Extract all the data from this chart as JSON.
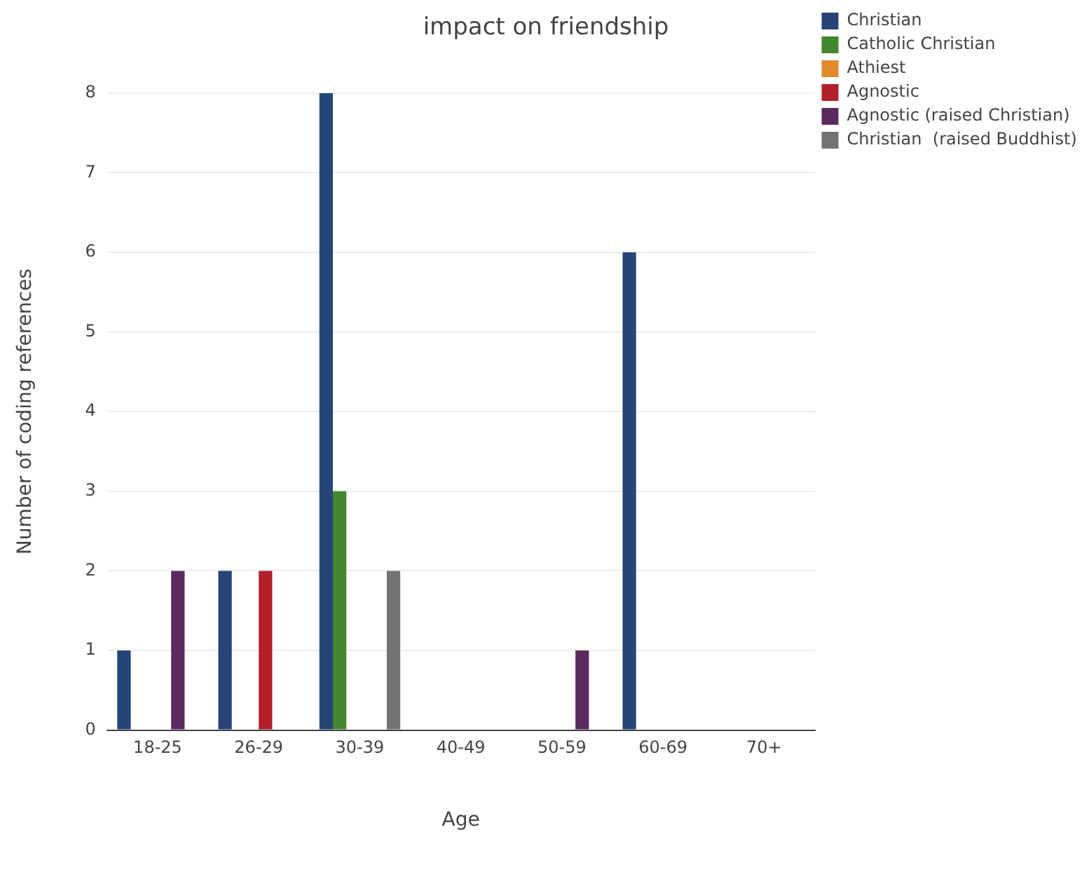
{
  "chart_data": {
    "type": "bar",
    "title": "impact on friendship",
    "xlabel": "Age",
    "ylabel": "Number of coding references",
    "categories": [
      "18-25",
      "26-29",
      "30-39",
      "40-49",
      "50-59",
      "60-69",
      "70+"
    ],
    "series": [
      {
        "name": "Christian",
        "color": "#264478",
        "values": [
          1,
          2,
          8,
          0,
          0,
          6,
          0
        ]
      },
      {
        "name": "Catholic Christian",
        "color": "#43882f",
        "values": [
          0,
          0,
          3,
          0,
          0,
          0,
          0
        ]
      },
      {
        "name": "Athiest",
        "color": "#e08a2c",
        "values": [
          0,
          0,
          0,
          0,
          0,
          0,
          0
        ]
      },
      {
        "name": "Agnostic",
        "color": "#b11f2a",
        "values": [
          0,
          2,
          0,
          0,
          0,
          0,
          0
        ]
      },
      {
        "name": "Agnostic (raised Christian)",
        "color": "#5a2a5f",
        "values": [
          2,
          0,
          0,
          0,
          1,
          0,
          0
        ]
      },
      {
        "name": "Christian  (raised Buddhist)",
        "color": "#737373",
        "values": [
          0,
          0,
          2,
          0,
          0,
          0,
          0
        ]
      }
    ],
    "ylim": [
      0,
      8
    ],
    "yticks": [
      0,
      1,
      2,
      3,
      4,
      5,
      6,
      7,
      8
    ],
    "grid": "y",
    "legend": "top right"
  }
}
